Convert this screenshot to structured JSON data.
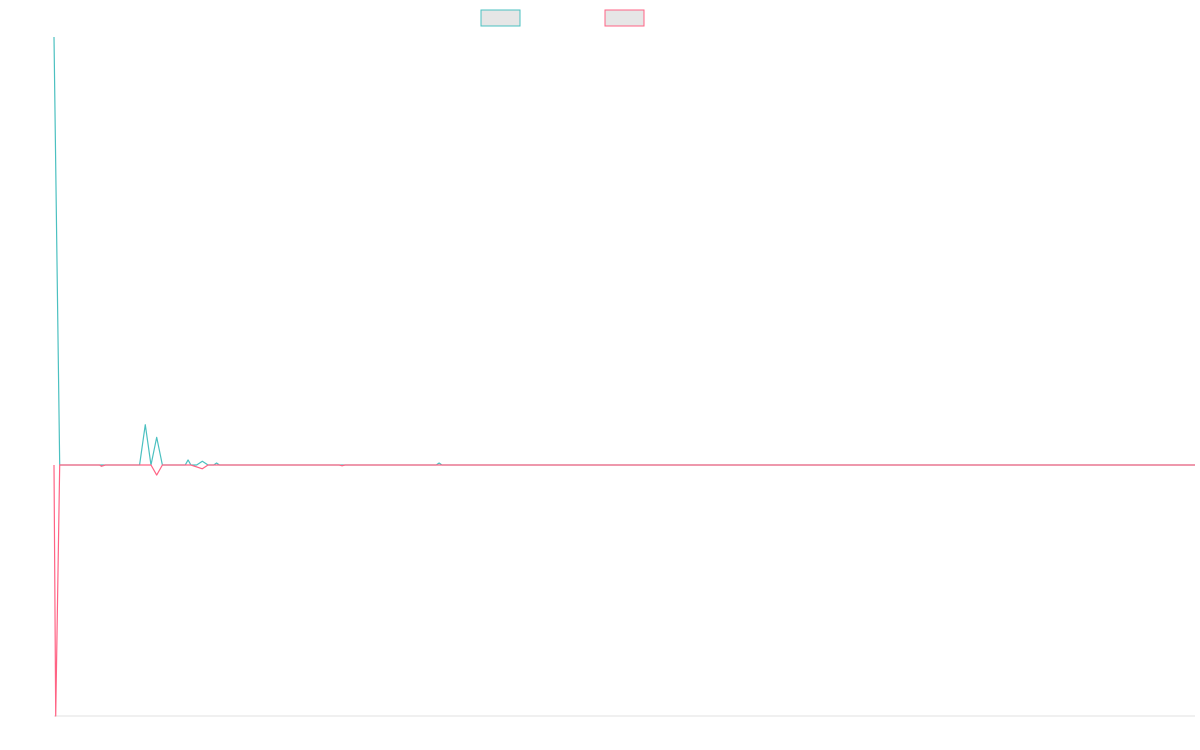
{
  "chart_data": {
    "type": "line",
    "title": "",
    "xlabel": "",
    "ylabel": "",
    "legend_position": "top-center",
    "grid": false,
    "x_range": [
      0,
      200
    ],
    "y_range": [
      -100,
      170
    ],
    "series": [
      {
        "color": "#4bc0c0",
        "fill": "#e6e6e6",
        "points": [
          [
            0,
            170
          ],
          [
            1,
            0
          ],
          [
            8,
            0
          ],
          [
            15,
            0
          ],
          [
            16,
            16
          ],
          [
            17,
            0
          ],
          [
            18,
            11
          ],
          [
            19,
            0
          ],
          [
            23,
            0
          ],
          [
            23.5,
            2
          ],
          [
            24,
            0
          ],
          [
            25,
            0
          ],
          [
            26,
            1.5
          ],
          [
            27,
            0
          ],
          [
            28,
            0
          ],
          [
            28.5,
            0.8
          ],
          [
            29,
            0
          ],
          [
            50,
            0
          ],
          [
            67,
            0
          ],
          [
            67.5,
            0.8
          ],
          [
            68,
            0
          ],
          [
            200,
            0
          ]
        ]
      },
      {
        "color": "#ff6384",
        "fill": "#e6e6e6",
        "points": [
          [
            0,
            0
          ],
          [
            0.3,
            -100
          ],
          [
            1,
            0
          ],
          [
            8,
            0
          ],
          [
            8.3,
            -0.5
          ],
          [
            9,
            0
          ],
          [
            15,
            0
          ],
          [
            17,
            0
          ],
          [
            18,
            -4
          ],
          [
            19,
            0
          ],
          [
            23,
            0
          ],
          [
            24,
            0
          ],
          [
            26,
            -1.5
          ],
          [
            27,
            0
          ],
          [
            28,
            0
          ],
          [
            29,
            0
          ],
          [
            50,
            0
          ],
          [
            50.5,
            -0.3
          ],
          [
            51,
            0
          ],
          [
            200,
            0
          ]
        ]
      }
    ]
  }
}
